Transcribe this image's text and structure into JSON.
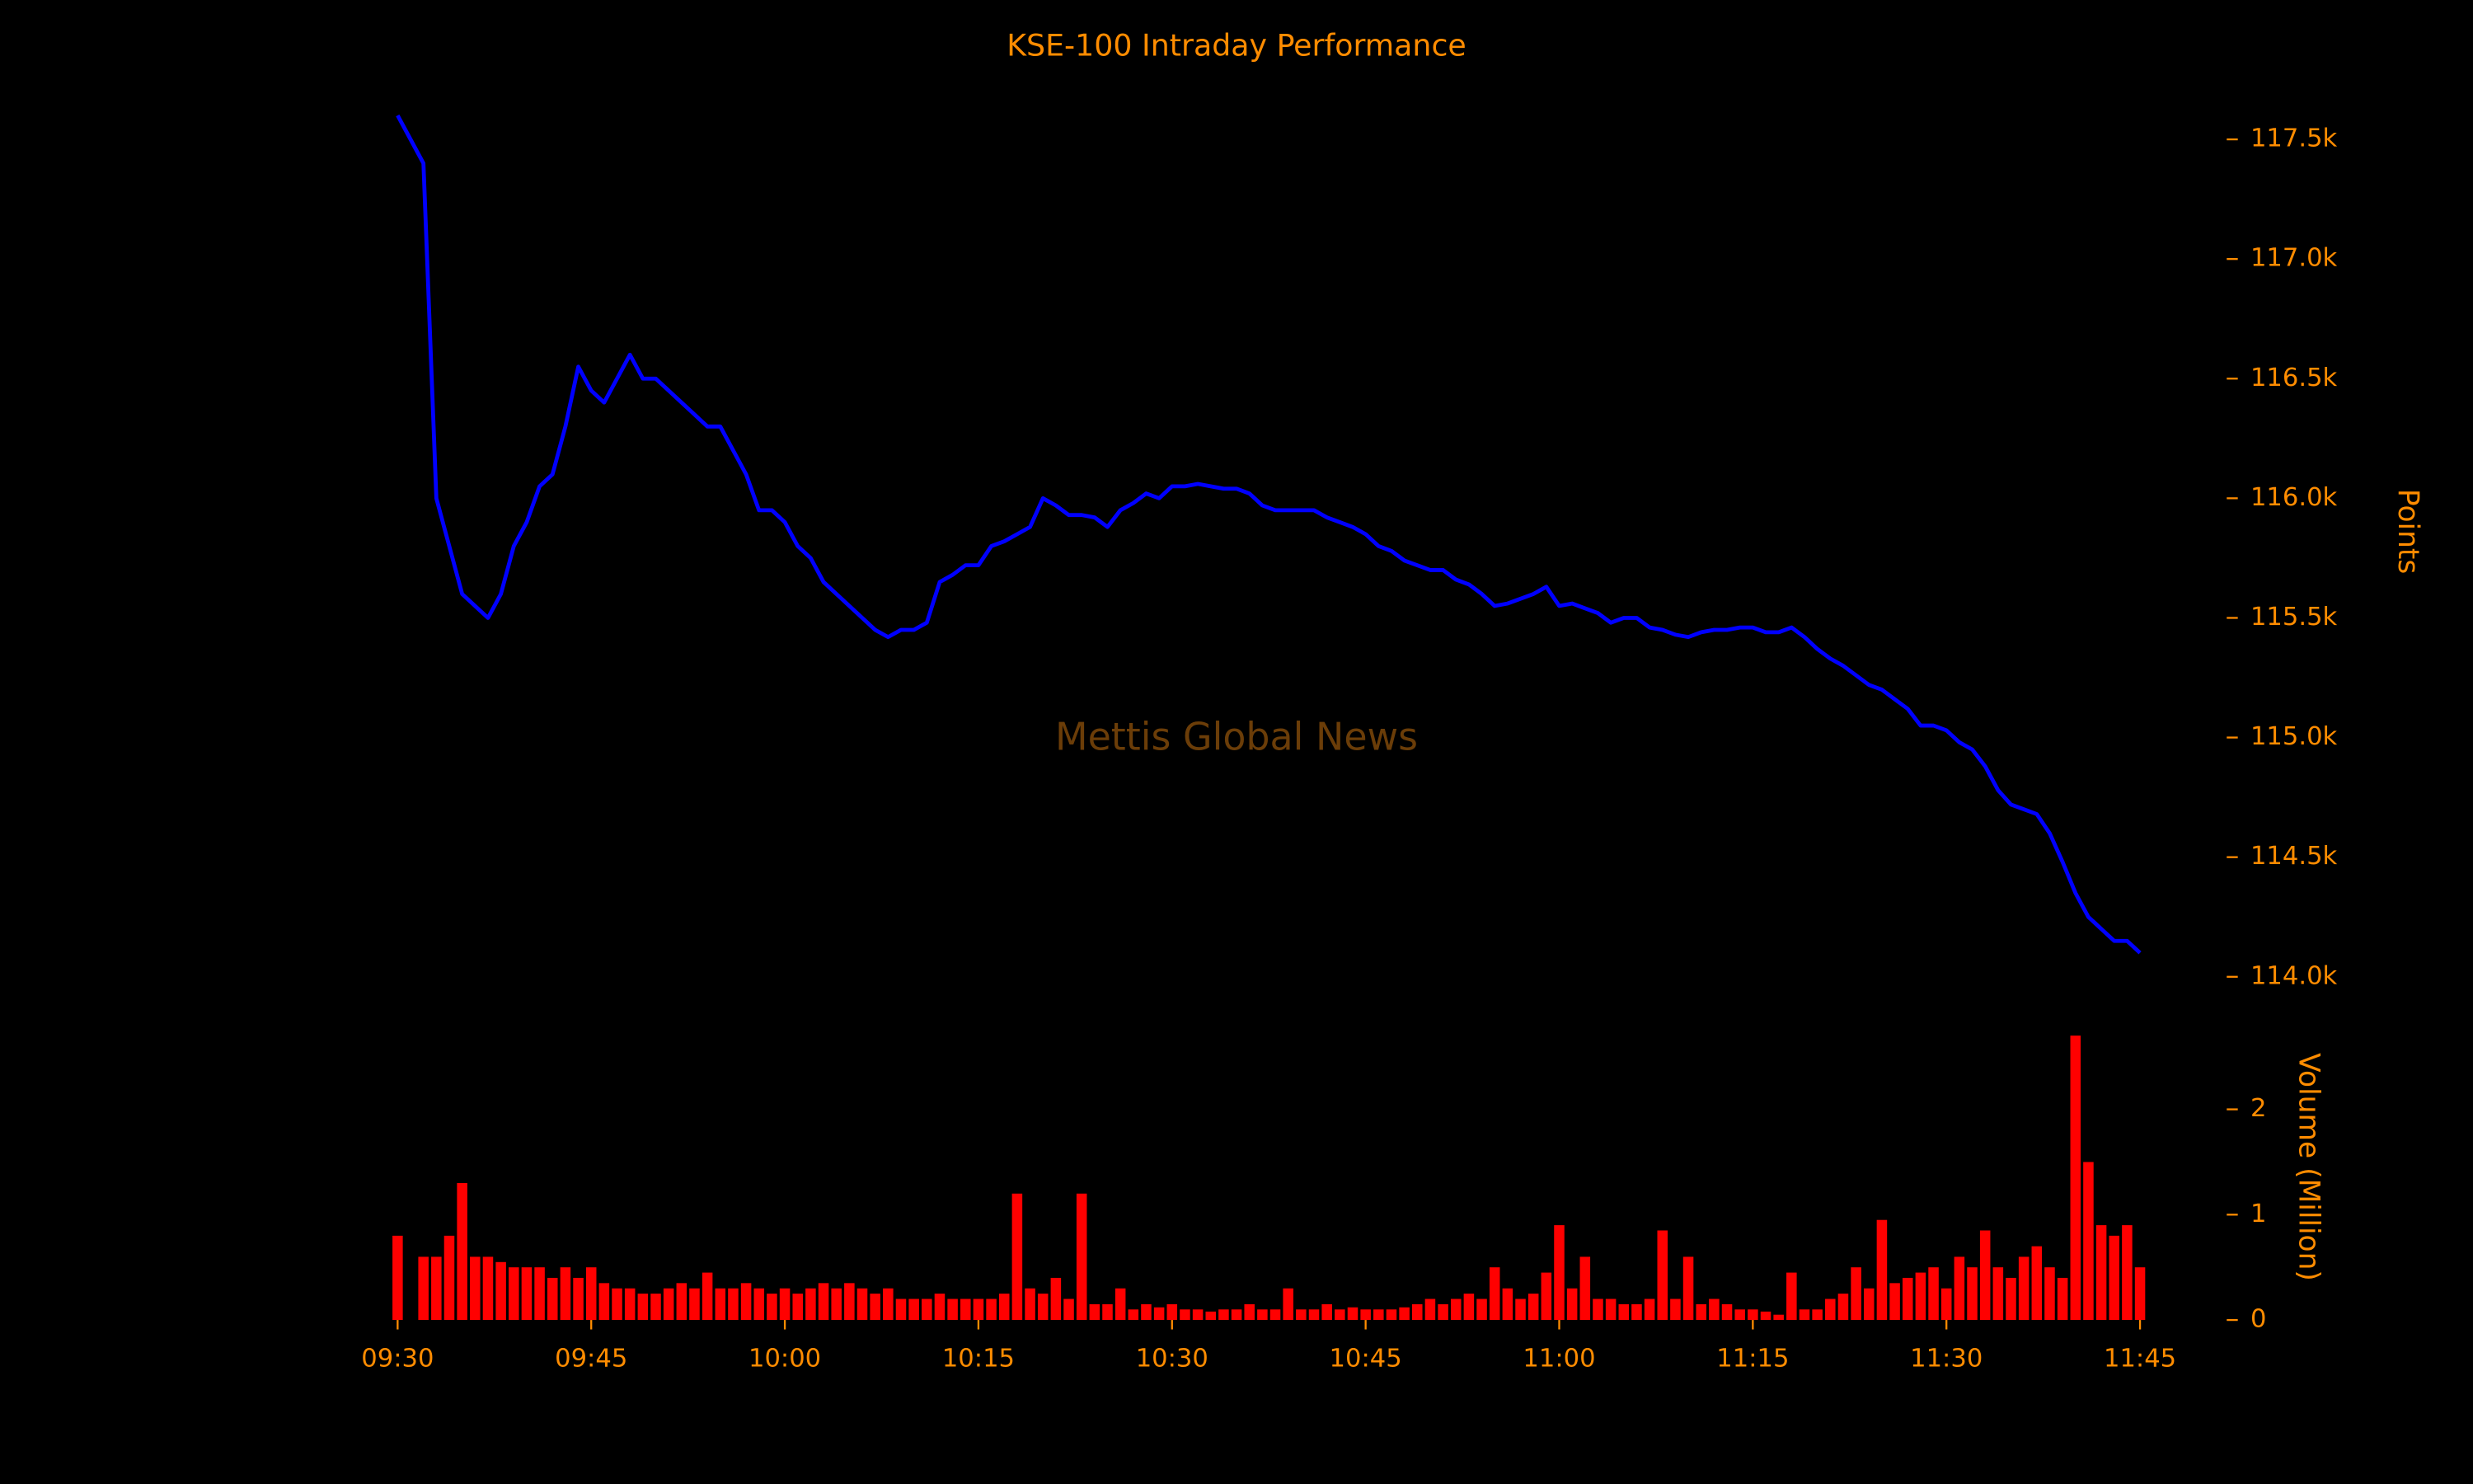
{
  "chart_data": {
    "type": "line",
    "title": "KSE-100 Intraday Performance",
    "annotation": "Mettis Global News",
    "ylabel": "Points",
    "y2label": "Volume (Million)",
    "x": [
      "09:30",
      "09:31",
      "09:32",
      "09:33",
      "09:34",
      "09:35",
      "09:36",
      "09:37",
      "09:38",
      "09:39",
      "09:40",
      "09:41",
      "09:42",
      "09:43",
      "09:44",
      "09:45",
      "09:46",
      "09:47",
      "09:48",
      "09:49",
      "09:50",
      "09:51",
      "09:52",
      "09:53",
      "09:54",
      "09:55",
      "09:56",
      "09:57",
      "09:58",
      "09:59",
      "10:00",
      "10:01",
      "10:02",
      "10:03",
      "10:04",
      "10:05",
      "10:06",
      "10:07",
      "10:08",
      "10:09",
      "10:10",
      "10:11",
      "10:12",
      "10:13",
      "10:14",
      "10:15",
      "10:16",
      "10:17",
      "10:18",
      "10:19",
      "10:20",
      "10:21",
      "10:22",
      "10:23",
      "10:24",
      "10:25",
      "10:26",
      "10:27",
      "10:28",
      "10:29",
      "10:30",
      "10:31",
      "10:32",
      "10:33",
      "10:34",
      "10:35",
      "10:36",
      "10:37",
      "10:38",
      "10:39",
      "10:40",
      "10:41",
      "10:42",
      "10:43",
      "10:44",
      "10:45",
      "10:46",
      "10:47",
      "10:48",
      "10:49",
      "10:50",
      "10:51",
      "10:52",
      "10:53",
      "10:54",
      "10:55",
      "10:56",
      "10:57",
      "10:58",
      "10:59",
      "11:00",
      "11:01",
      "11:02",
      "11:03",
      "11:04",
      "11:05",
      "11:06",
      "11:07",
      "11:08",
      "11:09",
      "11:10",
      "11:11",
      "11:12",
      "11:13",
      "11:14",
      "11:15",
      "11:16",
      "11:17",
      "11:18",
      "11:19",
      "11:20",
      "11:21",
      "11:22",
      "11:23",
      "11:24",
      "11:25",
      "11:26",
      "11:27",
      "11:28",
      "11:29",
      "11:30",
      "11:31",
      "11:32",
      "11:33",
      "11:34",
      "11:35",
      "11:36",
      "11:37",
      "11:38",
      "11:39",
      "11:40",
      "11:41",
      "11:42",
      "11:43",
      "11:44",
      "11:45"
    ],
    "xlim": [
      "09:30",
      "11:45"
    ],
    "xticks": [
      "09:30",
      "09:45",
      "10:00",
      "10:15",
      "10:30",
      "10:45",
      "11:00",
      "11:15",
      "11:30",
      "11:45"
    ],
    "ylim": [
      113930,
      117720
    ],
    "yticks": [
      {
        "value": 114000,
        "label": "114.0k"
      },
      {
        "value": 114500,
        "label": "114.5k"
      },
      {
        "value": 115000,
        "label": "115.0k"
      },
      {
        "value": 115500,
        "label": "115.5k"
      },
      {
        "value": 116000,
        "label": "116.0k"
      },
      {
        "value": 116500,
        "label": "116.5k"
      },
      {
        "value": 117000,
        "label": "117.0k"
      },
      {
        "value": 117500,
        "label": "117.5k"
      }
    ],
    "y2lim": [
      0,
      2.8
    ],
    "y2ticks": [
      0,
      1,
      2
    ],
    "series": [
      {
        "type": "line",
        "color": "#0000ff",
        "values": [
          117600,
          117500,
          117400,
          116000,
          115800,
          115600,
          115550,
          115500,
          115600,
          115800,
          115900,
          116050,
          116100,
          116300,
          116550,
          116450,
          116400,
          116500,
          116600,
          116500,
          116500,
          116450,
          116400,
          116350,
          116300,
          116300,
          116200,
          116100,
          115950,
          115950,
          115900,
          115800,
          115750,
          115650,
          115600,
          115550,
          115500,
          115450,
          115420,
          115450,
          115450,
          115480,
          115650,
          115680,
          115720,
          115720,
          115800,
          115820,
          115850,
          115880,
          116000,
          115970,
          115930,
          115930,
          115920,
          115880,
          115950,
          115980,
          116020,
          116000,
          116050,
          116050,
          116060,
          116050,
          116040,
          116040,
          116020,
          115970,
          115950,
          115950,
          115950,
          115950,
          115920,
          115900,
          115880,
          115850,
          115800,
          115780,
          115740,
          115720,
          115700,
          115700,
          115660,
          115640,
          115600,
          115550,
          115560,
          115580,
          115600,
          115630,
          115550,
          115560,
          115540,
          115520,
          115480,
          115500,
          115500,
          115460,
          115450,
          115430,
          115420,
          115440,
          115450,
          115450,
          115460,
          115460,
          115440,
          115440,
          115460,
          115420,
          115370,
          115330,
          115300,
          115260,
          115220,
          115200,
          115160,
          115120,
          115050,
          115050,
          115030,
          114980,
          114950,
          114880,
          114780,
          114720,
          114700,
          114680,
          114600,
          114480,
          114350,
          114250,
          114200,
          114150,
          114150,
          114100
        ]
      },
      {
        "type": "bar",
        "axis": "y2",
        "color": "#ff0000",
        "values": [
          0.8,
          0,
          0.6,
          0.6,
          0.8,
          1.3,
          0.6,
          0.6,
          0.55,
          0.5,
          0.5,
          0.5,
          0.4,
          0.5,
          0.4,
          0.5,
          0.35,
          0.3,
          0.3,
          0.25,
          0.25,
          0.3,
          0.35,
          0.3,
          0.45,
          0.3,
          0.3,
          0.35,
          0.3,
          0.25,
          0.3,
          0.25,
          0.3,
          0.35,
          0.3,
          0.35,
          0.3,
          0.25,
          0.3,
          0.2,
          0.2,
          0.2,
          0.25,
          0.2,
          0.2,
          0.2,
          0.2,
          0.25,
          1.2,
          0.3,
          0.25,
          0.4,
          0.2,
          1.2,
          0.15,
          0.15,
          0.3,
          0.1,
          0.15,
          0.12,
          0.15,
          0.1,
          0.1,
          0.08,
          0.1,
          0.1,
          0.15,
          0.1,
          0.1,
          0.3,
          0.1,
          0.1,
          0.15,
          0.1,
          0.12,
          0.1,
          0.1,
          0.1,
          0.12,
          0.15,
          0.2,
          0.15,
          0.2,
          0.25,
          0.2,
          0.5,
          0.3,
          0.2,
          0.25,
          0.45,
          0.9,
          0.3,
          0.6,
          0.2,
          0.2,
          0.15,
          0.15,
          0.2,
          0.85,
          0.2,
          0.6,
          0.15,
          0.2,
          0.15,
          0.1,
          0.1,
          0.08,
          0.05,
          0.45,
          0.1,
          0.1,
          0.2,
          0.25,
          0.5,
          0.3,
          0.95,
          0.35,
          0.4,
          0.45,
          0.5,
          0.3,
          0.6,
          0.5,
          0.85,
          0.5,
          0.4,
          0.6,
          0.7,
          0.5,
          0.4,
          2.7,
          1.5,
          0.9,
          0.8,
          0.9,
          0.5
        ]
      }
    ]
  }
}
